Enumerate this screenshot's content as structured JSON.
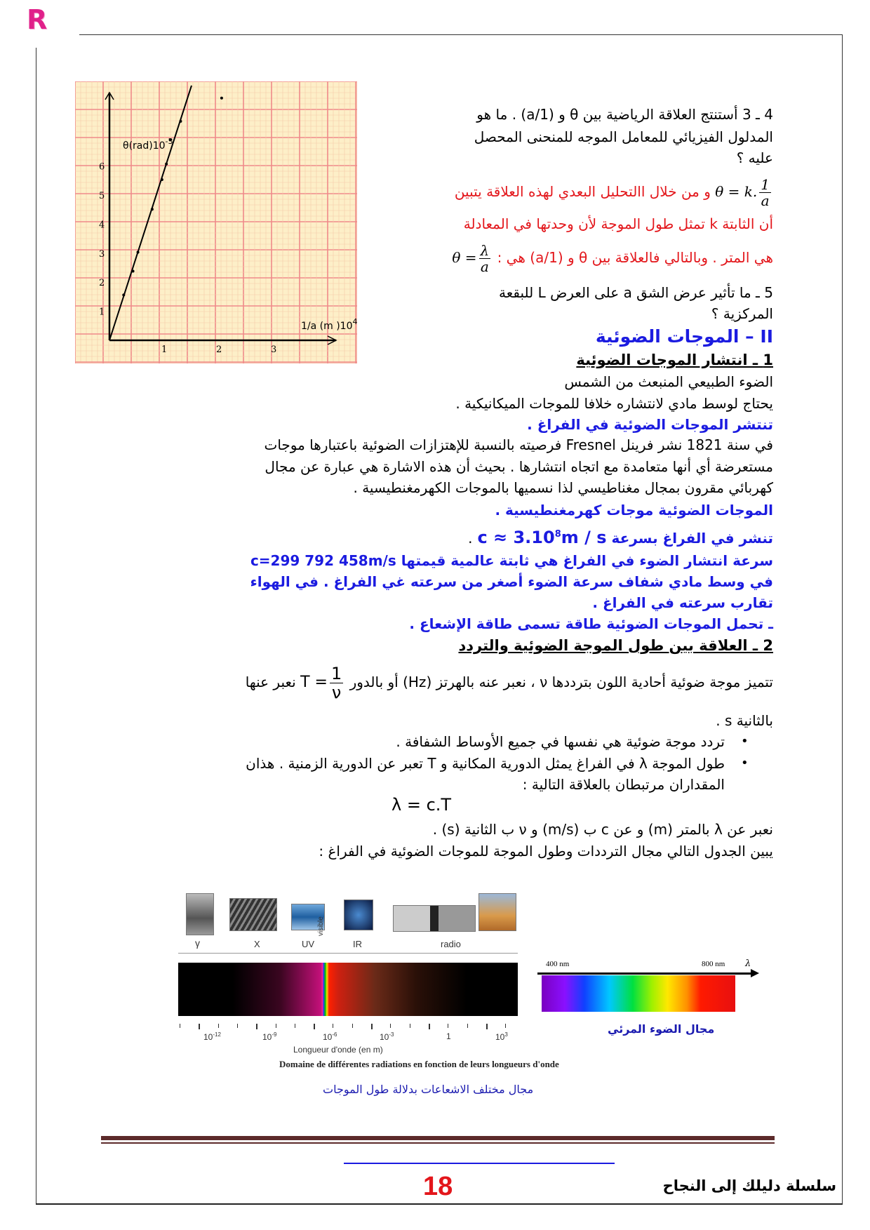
{
  "logo": {
    "letter": "R",
    "color": "#e0218a"
  },
  "graph": {
    "y_label": "θ(rad)10",
    "y_label_exp": "-3",
    "x_label": "1/a (m )10",
    "x_label_exp": "4",
    "y_ticks": [
      "1",
      "2",
      "3",
      "4",
      "5",
      "6"
    ],
    "x_ticks": [
      "1",
      "2",
      "3"
    ],
    "points": [
      [
        0.26,
        1.56
      ],
      [
        0.43,
        2.38
      ],
      [
        0.52,
        3.03
      ],
      [
        0.78,
        4.51
      ],
      [
        0.96,
        5.53
      ],
      [
        1.04,
        6.07
      ],
      [
        1.3,
        7.54
      ],
      [
        1.11,
        6.9
      ],
      [
        2.05,
        8.34
      ]
    ],
    "fit_line": [
      [
        0,
        0
      ],
      [
        1.5,
        8.77
      ]
    ]
  },
  "q43": {
    "line1": "4 ـ 3 أستنتج العلاقة الرياضية بين θ و (1/a) . ما هو",
    "line2": "المدلول الفيزيائي للمعامل الموجه للمنحنى المحصل",
    "line3": "عليه ؟"
  },
  "answer": {
    "f1_lhs": "θ = k.",
    "f1_num": "1",
    "f1_den": "a",
    "line1": "و من خلال االتحليل البعدي لهذه العلاقة يتبين",
    "line2": "أن الثابتة k تمثل طول الموجة لأن وحدتها في المعادلة",
    "line3": "هي المتر . وبالتالي فالعلاقة بين θ و (1/a) هي :",
    "f2_lhs": "θ =",
    "f2_num": "λ",
    "f2_den": "a"
  },
  "q5": {
    "line1": "5 ـ ما تأثير عرض الشق a على العرض L للبقعة",
    "line2": "المركزية ؟"
  },
  "section2": {
    "heading": "II – الموجات الضوئية",
    "sub1": "1 ـ انتشار الموجات الضوئية",
    "p1": "الضوء الطبيعي المنبعث من الشمس",
    "p2": "يحتاج لوسط مادي لانتشاره خلافا للموجات الميكانيكية .",
    "b1": "تنتشر الموجات الضوئية في الفراغ .",
    "p3": "في سنة 1821 نشر فرينل Fresnel فرصيته بالنسبة للإهتزازات الضوئية باعتبارها موجات",
    "p4": "مستعرضة أي أنها متعامدة مع اتجاه انتشارها . بحيث أن هذه الاشارة هي عبارة عن مجال",
    "p5": "كهربائي مقرون بمجال مغناطيسي لذا نسميها بالموجات الكهرمغنطيسية .",
    "b2": "الموجات الضوئية موجات كهرمغنطيسية .",
    "b3_text": "تنشر في الفراغ بسرعة",
    "b3_formula": "c ≈ 3.10",
    "b3_exp": "8",
    "b3_unit": "m / s",
    "b3_end": ".",
    "b4": "سرعة انتشار الضوء في الفراغ هي ثابتة عالمية قيمتها c=299 792 458m/s",
    "b5": "في وسط مادي شفاف سرعة الضوء أصغر من سرعته غي الفراغ . في الهواء",
    "b6": "تقارب سرعته في الفراغ .",
    "b7": "ـ تحمل الموجات الضوئية طاقة تسمى طاقة الإشعاع .",
    "sub2": "2 ـ العلاقة بين طول الموجة الضوئية والتردد",
    "t1_text": "تتميز موجة ضوئية أحادية اللون بترددها ν ، نعبر عنه بالهرتز (Hz) أو بالدور",
    "t1_lhs": "T =",
    "t1_num": "1",
    "t1_den": "ν",
    "t1_end": "نعبر عنها",
    "t2": "بالثانية s .",
    "bullet_symbol": "•",
    "li1": "تردد موجة ضوئية هي نفسها في جميع الأوساط الشفافة .",
    "li2a": "طول الموجة λ في الفراغ يمثل الدورية المكانية و T تعبر عن الدورية الزمنية . هذان",
    "li2b": "المقداران مرتبطان بالعلاقة التالية :",
    "formula": "λ = c.T",
    "p6": "نعبر عن λ بالمتر (m) و عن c ب (m/s) و ν ب الثانية (s) .",
    "p7": "يبين الجدول التالي مجال الترددات وطول الموجة للموجات الضوئية في الفراغ :"
  },
  "spectrum": {
    "band_labels": [
      "γ",
      "X",
      "UV",
      "visible",
      "IR",
      "radio"
    ],
    "axis_ticks": [
      {
        "base": "10",
        "exp": "-12"
      },
      {
        "base": "10",
        "exp": "-9"
      },
      {
        "base": "10",
        "exp": "-6"
      },
      {
        "base": "10",
        "exp": "-3"
      },
      {
        "base": "1",
        "exp": ""
      },
      {
        "base": "10",
        "exp": "3"
      }
    ],
    "axis_title": "Longueur d'onde (en m)",
    "caption_fr": "Domaine de différentes radiations en fonction de leurs longueurs d'onde",
    "caption_ar": "مجال مختلف الاشعاعات بدلالة طول الموجات",
    "visible_start": "400 nm",
    "visible_end": "800 nm",
    "visible_axis": "λ",
    "visible_caption": "مجال الضوء المرئي"
  },
  "footer": {
    "page_number": "18",
    "series_title": "سلسلة دليلك إلى النجاح"
  },
  "colors": {
    "red": "#e3161b",
    "blue": "#1b1be0",
    "rule": "#5c2a2a"
  }
}
